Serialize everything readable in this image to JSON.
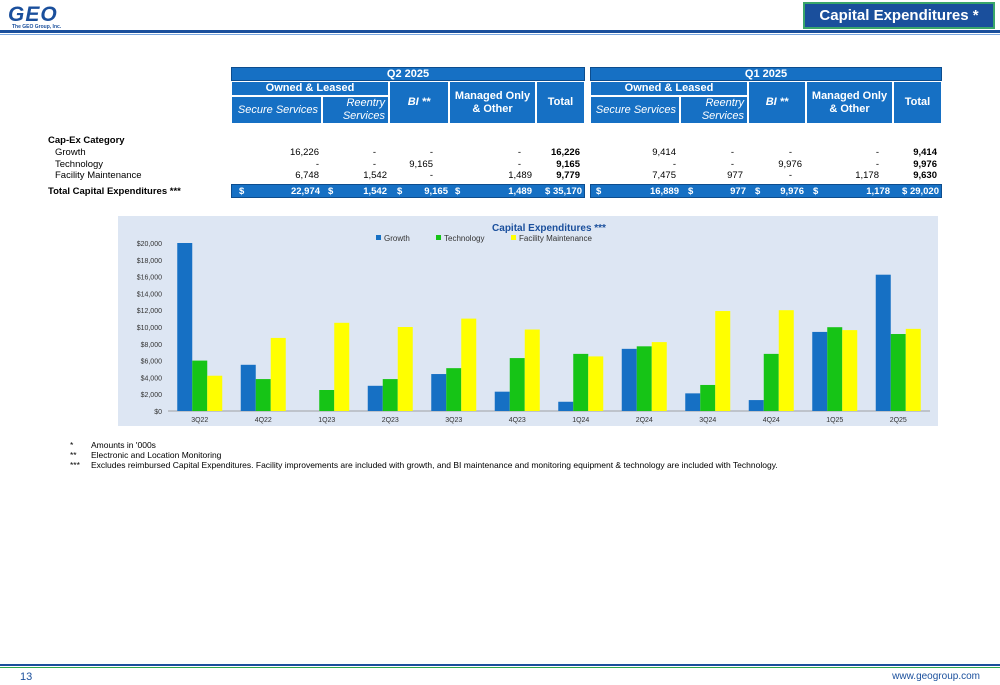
{
  "header": {
    "logo_text": "GEO",
    "logo_sub": "The GEO Group, Inc.",
    "title": "Capital Expenditures *"
  },
  "table": {
    "q2": {
      "period": "Q2 2025",
      "owned_leased": "Owned & Leased",
      "secure": "Secure Services",
      "reentry": "Reentry Services",
      "bi": "BI **",
      "managed": "Managed Only & Other",
      "total": "Total"
    },
    "q1": {
      "period": "Q1 2025",
      "owned_leased": "Owned & Leased",
      "secure": "Secure Services",
      "reentry": "Reentry Services",
      "bi": "BI **",
      "managed": "Managed Only & Other",
      "total": "Total"
    },
    "category_header": "Cap-Ex Category",
    "rows": [
      {
        "label": "Growth",
        "q2": [
          "16,226",
          "-",
          "-",
          "-",
          "16,226"
        ],
        "q1": [
          "9,414",
          "-",
          "-",
          "-",
          "9,414"
        ]
      },
      {
        "label": "Technology",
        "q2": [
          "-",
          "-",
          "9,165",
          "-",
          "9,165"
        ],
        "q1": [
          "-",
          "-",
          "9,976",
          "-",
          "9,976"
        ]
      },
      {
        "label": "Facility Maintenance",
        "q2": [
          "6,748",
          "1,542",
          "-",
          "1,489",
          "9,779"
        ],
        "q1": [
          "7,475",
          "977",
          "-",
          "1,178",
          "9,630"
        ]
      }
    ],
    "total_row": {
      "label": "Total Capital Expenditures ***",
      "currency": "$",
      "q2": [
        "22,974",
        "1,542",
        "9,165",
        "1,489",
        "$ 35,170"
      ],
      "q1": [
        "16,889",
        "977",
        "9,976",
        "1,178",
        "$ 29,020"
      ]
    }
  },
  "chart_data": {
    "type": "bar",
    "title": "Capital Expenditures ***",
    "categories": [
      "3Q22",
      "4Q22",
      "1Q23",
      "2Q23",
      "3Q23",
      "4Q23",
      "1Q24",
      "2Q24",
      "3Q24",
      "4Q24",
      "1Q25",
      "2Q25"
    ],
    "series": [
      {
        "name": "Growth",
        "color": "#1670c4",
        "values": [
          20000,
          5500,
          0,
          3000,
          4400,
          2300,
          1100,
          7400,
          2100,
          1300,
          9414,
          16226
        ]
      },
      {
        "name": "Technology",
        "color": "#16c416",
        "values": [
          6000,
          3800,
          2500,
          3800,
          5100,
          6300,
          6800,
          7700,
          3100,
          6800,
          9976,
          9165
        ]
      },
      {
        "name": "Facility Maintenance",
        "color": "#ffff00",
        "values": [
          4200,
          8700,
          10500,
          10000,
          11000,
          9700,
          6500,
          8200,
          11900,
          12000,
          9630,
          9779
        ]
      }
    ],
    "y_ticks": [
      "$0",
      "$2,000",
      "$4,000",
      "$6,000",
      "$8,000",
      "$10,000",
      "$12,000",
      "$14,000",
      "$16,000",
      "$18,000",
      "$20,000"
    ],
    "ylim": [
      0,
      20000
    ],
    "legend_position": "top-center",
    "grid": false
  },
  "footnotes": [
    {
      "mark": "*",
      "text": "Amounts in '000s"
    },
    {
      "mark": "**",
      "text": "Electronic and Location Monitoring"
    },
    {
      "mark": "***",
      "text": "Excludes reimbursed Capital Expenditures. Facility improvements are included with growth, and BI maintenance and monitoring equipment & technology are included with Technology."
    }
  ],
  "footer": {
    "page_number": "13",
    "website": "www.geogroup.com"
  }
}
